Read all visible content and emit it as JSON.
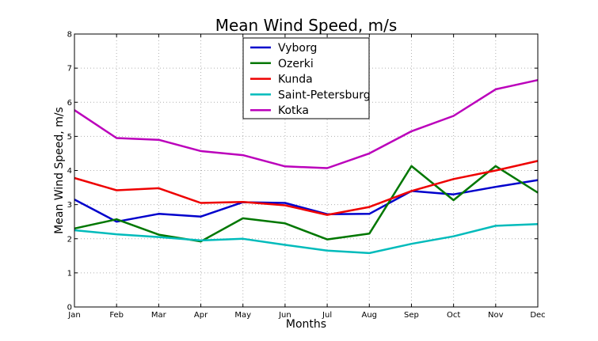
{
  "chart_data": {
    "type": "line",
    "title": "Mean Wind Speed, m/s",
    "xlabel": "Months",
    "ylabel": "Mean Wind Speed, m/s",
    "categories": [
      "Jan",
      "Feb",
      "Mar",
      "Apr",
      "May",
      "Jun",
      "Jul",
      "Aug",
      "Sep",
      "Oct",
      "Nov",
      "Dec"
    ],
    "ylim": [
      0,
      8
    ],
    "yticks": [
      "0",
      "1",
      "2",
      "3",
      "4",
      "5",
      "6",
      "7",
      "8"
    ],
    "grid": true,
    "legend_position": "top-center",
    "series": [
      {
        "name": "Vyborg",
        "color": "#0000cc",
        "values": [
          3.15,
          2.5,
          2.73,
          2.65,
          3.07,
          3.05,
          2.72,
          2.73,
          3.4,
          3.3,
          3.52,
          3.72
        ]
      },
      {
        "name": "Ozerki",
        "color": "#007700",
        "values": [
          2.3,
          2.57,
          2.12,
          1.92,
          2.6,
          2.45,
          1.98,
          2.15,
          4.13,
          3.13,
          4.13,
          3.35
        ]
      },
      {
        "name": "Kunda",
        "color": "#ee0000",
        "values": [
          3.78,
          3.42,
          3.48,
          3.05,
          3.08,
          2.98,
          2.7,
          2.93,
          3.4,
          3.75,
          4.0,
          4.28
        ]
      },
      {
        "name": "Saint-Petersburg",
        "color": "#00bbbb",
        "values": [
          2.25,
          2.13,
          2.05,
          1.95,
          2.0,
          1.82,
          1.65,
          1.58,
          1.85,
          2.07,
          2.38,
          2.43
        ]
      },
      {
        "name": "Kotka",
        "color": "#bb00bb",
        "values": [
          5.77,
          4.95,
          4.9,
          4.57,
          4.45,
          4.12,
          4.07,
          4.5,
          5.15,
          5.6,
          6.38,
          6.65
        ]
      }
    ]
  }
}
